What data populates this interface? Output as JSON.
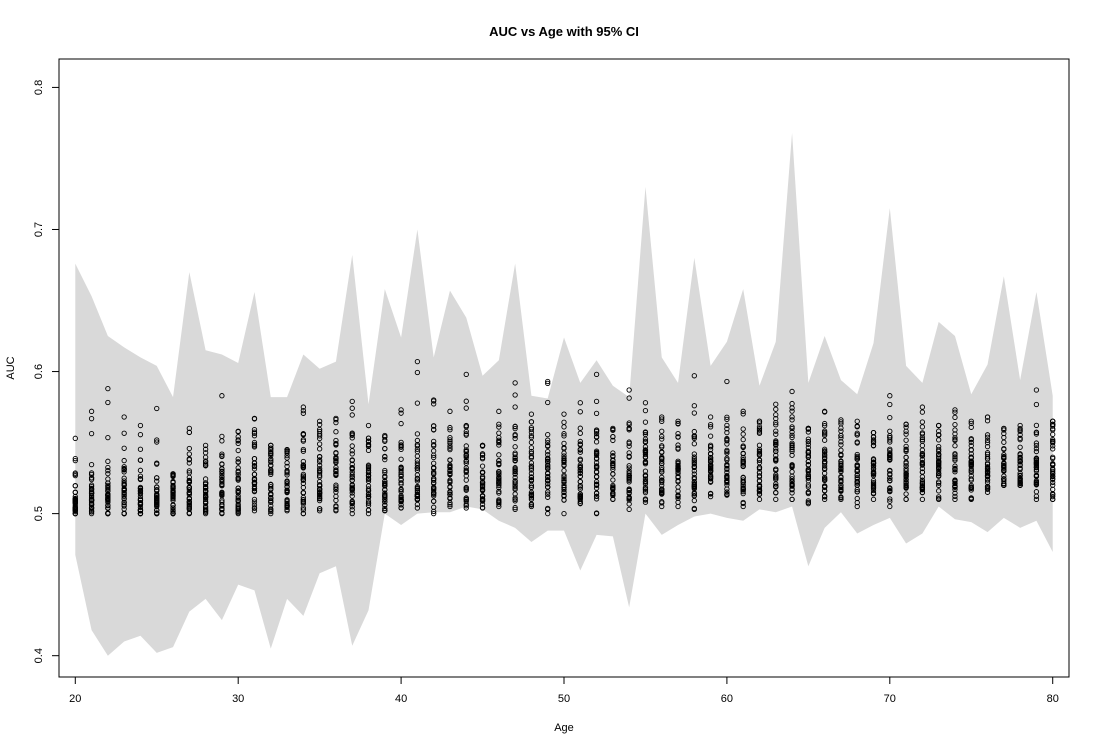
{
  "chart_data": {
    "type": "scatter",
    "title": "AUC vs Age with 95% CI",
    "xlabel": "Age",
    "ylabel": "AUC",
    "xlim": [
      19,
      81
    ],
    "ylim": [
      0.385,
      0.82
    ],
    "xticks": [
      20,
      30,
      40,
      50,
      60,
      70,
      80
    ],
    "yticks": [
      0.4,
      0.5,
      0.6,
      0.7,
      0.8
    ],
    "ytick_labels": [
      "0.4",
      "0.5",
      "0.6",
      "0.7",
      "0.8"
    ],
    "grid": false,
    "ci_band_color": "#d9d9d9",
    "point_color": "#000000",
    "ci_band": {
      "age": [
        20,
        21,
        22,
        23,
        24,
        25,
        26,
        27,
        28,
        29,
        30,
        31,
        32,
        33,
        34,
        35,
        36,
        37,
        38,
        39,
        40,
        41,
        42,
        43,
        44,
        45,
        46,
        47,
        48,
        49,
        50,
        51,
        52,
        53,
        54,
        55,
        56,
        57,
        58,
        59,
        60,
        61,
        62,
        63,
        64,
        65,
        66,
        67,
        68,
        69,
        70,
        71,
        72,
        73,
        74,
        75,
        76,
        77,
        78,
        79,
        80
      ],
      "upper": [
        0.676,
        0.653,
        0.625,
        0.617,
        0.61,
        0.604,
        0.582,
        0.67,
        0.615,
        0.612,
        0.606,
        0.656,
        0.582,
        0.582,
        0.612,
        0.602,
        0.607,
        0.682,
        0.577,
        0.658,
        0.624,
        0.7,
        0.61,
        0.657,
        0.638,
        0.597,
        0.608,
        0.676,
        0.583,
        0.581,
        0.624,
        0.592,
        0.608,
        0.59,
        0.582,
        0.73,
        0.61,
        0.592,
        0.68,
        0.604,
        0.621,
        0.658,
        0.59,
        0.621,
        0.768,
        0.592,
        0.625,
        0.594,
        0.584,
        0.62,
        0.715,
        0.604,
        0.592,
        0.635,
        0.625,
        0.584,
        0.605,
        0.667,
        0.594,
        0.656,
        0.583
      ],
      "lower": [
        0.471,
        0.418,
        0.4,
        0.41,
        0.414,
        0.402,
        0.406,
        0.431,
        0.44,
        0.425,
        0.45,
        0.446,
        0.405,
        0.44,
        0.428,
        0.458,
        0.463,
        0.407,
        0.432,
        0.5,
        0.492,
        0.5,
        0.501,
        0.501,
        0.505,
        0.503,
        0.495,
        0.49,
        0.48,
        0.488,
        0.488,
        0.46,
        0.485,
        0.484,
        0.434,
        0.5,
        0.485,
        0.492,
        0.498,
        0.5,
        0.497,
        0.495,
        0.503,
        0.501,
        0.505,
        0.463,
        0.49,
        0.501,
        0.486,
        0.492,
        0.497,
        0.479,
        0.486,
        0.505,
        0.496,
        0.494,
        0.487,
        0.497,
        0.49,
        0.495,
        0.473
      ]
    },
    "points": {
      "age": [
        20,
        21,
        22,
        23,
        24,
        25,
        26,
        27,
        28,
        29,
        30,
        31,
        32,
        33,
        34,
        35,
        36,
        37,
        38,
        39,
        40,
        41,
        42,
        43,
        44,
        45,
        46,
        47,
        48,
        49,
        50,
        51,
        52,
        53,
        54,
        55,
        56,
        57,
        58,
        59,
        60,
        61,
        62,
        63,
        64,
        65,
        66,
        67,
        68,
        69,
        70,
        71,
        72,
        73,
        74,
        75,
        76,
        77,
        78,
        79,
        80
      ],
      "min": [
        0.5,
        0.5,
        0.5,
        0.5,
        0.5,
        0.5,
        0.5,
        0.5,
        0.5,
        0.5,
        0.5,
        0.502,
        0.5,
        0.502,
        0.5,
        0.502,
        0.502,
        0.5,
        0.5,
        0.502,
        0.504,
        0.504,
        0.5,
        0.505,
        0.504,
        0.504,
        0.505,
        0.503,
        0.505,
        0.5,
        0.5,
        0.507,
        0.5,
        0.51,
        0.503,
        0.508,
        0.505,
        0.505,
        0.503,
        0.512,
        0.513,
        0.505,
        0.51,
        0.51,
        0.51,
        0.507,
        0.51,
        0.51,
        0.505,
        0.51,
        0.505,
        0.51,
        0.51,
        0.51,
        0.51,
        0.51,
        0.515,
        0.52,
        0.52,
        0.51,
        0.51
      ],
      "max": [
        0.553,
        0.572,
        0.588,
        0.568,
        0.562,
        0.574,
        0.528,
        0.56,
        0.548,
        0.583,
        0.558,
        0.567,
        0.548,
        0.545,
        0.575,
        0.565,
        0.567,
        0.579,
        0.562,
        0.555,
        0.573,
        0.607,
        0.58,
        0.572,
        0.598,
        0.548,
        0.572,
        0.592,
        0.57,
        0.593,
        0.57,
        0.578,
        0.598,
        0.56,
        0.587,
        0.578,
        0.568,
        0.565,
        0.597,
        0.568,
        0.593,
        0.572,
        0.565,
        0.577,
        0.586,
        0.56,
        0.572,
        0.566,
        0.565,
        0.557,
        0.583,
        0.563,
        0.575,
        0.562,
        0.573,
        0.565,
        0.568,
        0.56,
        0.562,
        0.587,
        0.565
      ],
      "dense_low": [
        0.5,
        0.502,
        0.5,
        0.5,
        0.5,
        0.5,
        0.5,
        0.502,
        0.502,
        0.502,
        0.502,
        0.505,
        0.503,
        0.505,
        0.503,
        0.505,
        0.505,
        0.505,
        0.505,
        0.505,
        0.508,
        0.51,
        0.507,
        0.51,
        0.508,
        0.508,
        0.508,
        0.51,
        0.51,
        0.51,
        0.51,
        0.51,
        0.512,
        0.513,
        0.51,
        0.512,
        0.512,
        0.512,
        0.512,
        0.515,
        0.515,
        0.514,
        0.515,
        0.515,
        0.515,
        0.514,
        0.515,
        0.515,
        0.515,
        0.515,
        0.515,
        0.516,
        0.516,
        0.516,
        0.516,
        0.516,
        0.518,
        0.52,
        0.52,
        0.52,
        0.512
      ],
      "dense_high": [
        0.512,
        0.52,
        0.52,
        0.525,
        0.52,
        0.518,
        0.52,
        0.528,
        0.522,
        0.53,
        0.535,
        0.54,
        0.54,
        0.535,
        0.54,
        0.54,
        0.54,
        0.54,
        0.535,
        0.535,
        0.535,
        0.54,
        0.545,
        0.54,
        0.545,
        0.53,
        0.54,
        0.545,
        0.545,
        0.54,
        0.54,
        0.54,
        0.545,
        0.54,
        0.545,
        0.545,
        0.54,
        0.54,
        0.54,
        0.542,
        0.545,
        0.54,
        0.545,
        0.55,
        0.555,
        0.545,
        0.545,
        0.545,
        0.54,
        0.54,
        0.545,
        0.54,
        0.545,
        0.545,
        0.545,
        0.54,
        0.54,
        0.54,
        0.54,
        0.54,
        0.555
      ]
    }
  }
}
